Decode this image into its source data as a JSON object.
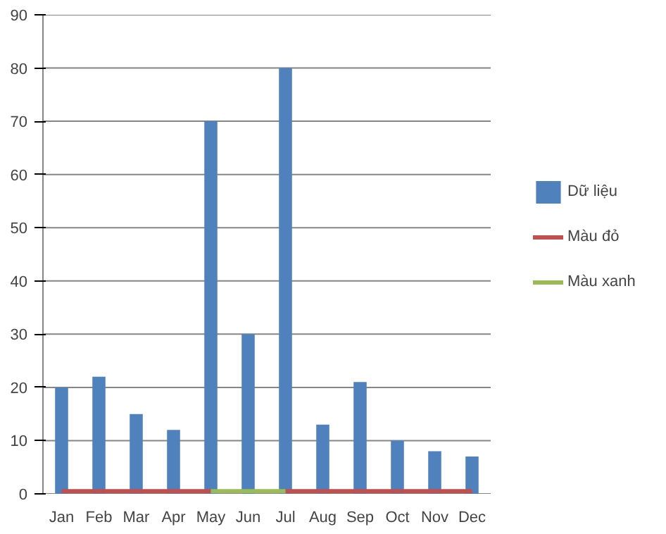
{
  "chart_data": {
    "type": "bar",
    "categories": [
      "Jan",
      "Feb",
      "Mar",
      "Apr",
      "May",
      "Jun",
      "Jul",
      "Aug",
      "Sep",
      "Oct",
      "Nov",
      "Dec"
    ],
    "series": [
      {
        "name": "Dữ liệu",
        "color": "#4f81bd",
        "values": [
          20,
          22,
          15,
          12,
          70,
          30,
          80,
          13,
          21,
          10,
          8,
          7
        ]
      },
      {
        "name": "Màu đỏ",
        "type": "line",
        "color": "#c0504d",
        "values": [
          0.5,
          0.5,
          0.5,
          0.5,
          0.5,
          null,
          0.5,
          0.5,
          0.5,
          0.5,
          0.5,
          0.5
        ]
      },
      {
        "name": "Màu xanh",
        "type": "line",
        "color": "#9bbb59",
        "values": [
          null,
          null,
          null,
          null,
          0.5,
          0.5,
          0.5,
          null,
          null,
          null,
          null,
          null
        ]
      }
    ],
    "ylim": [
      0,
      90
    ],
    "yticks": [
      0,
      10,
      20,
      30,
      40,
      50,
      60,
      70,
      80,
      90
    ],
    "grid": "y",
    "legend": "right"
  }
}
